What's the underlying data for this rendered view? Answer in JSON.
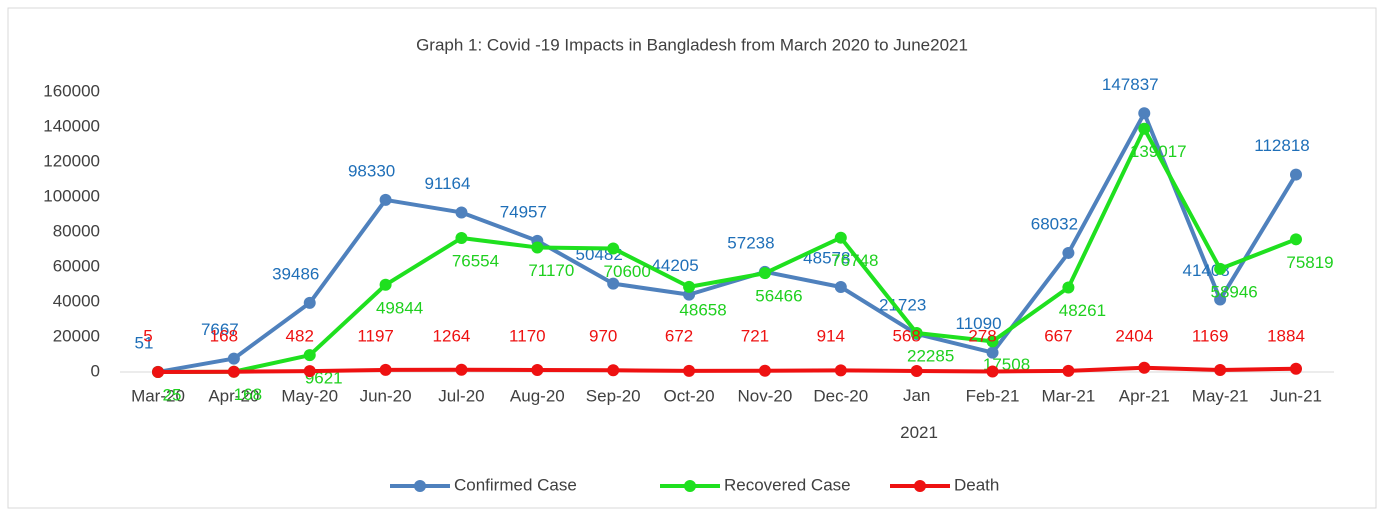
{
  "chart_data": {
    "type": "line",
    "title": "Graph 1: Covid -19 Impacts in Bangladesh from March 2020 to June2021",
    "categories": [
      "Mar-20",
      "Apr-20",
      "May-20",
      "Jun-20",
      "Jul-20",
      "Aug-20",
      "Sep-20",
      "Oct-20",
      "Nov-20",
      "Dec-20",
      "Jan 2021",
      "Feb-21",
      "Mar-21",
      "Apr-21",
      "May-21",
      "Jun-21"
    ],
    "series": [
      {
        "name": "Confirmed Case",
        "color": "#4f81bd",
        "label_color": "#1f6fb8",
        "values": [
          51,
          7667,
          39486,
          98330,
          91164,
          74957,
          50482,
          44205,
          57238,
          48578,
          21723,
          11090,
          68032,
          147837,
          41408,
          112818
        ]
      },
      {
        "name": "Recovered Case",
        "color": "#1fe01f",
        "label_color": "#1fd01f",
        "values": [
          25,
          168,
          9621,
          49844,
          76554,
          71170,
          70600,
          48658,
          56466,
          76748,
          22285,
          17508,
          48261,
          139017,
          58946,
          75819
        ]
      },
      {
        "name": "Death",
        "color": "#ee1111",
        "label_color": "#ee1111",
        "values": [
          5,
          168,
          482,
          1197,
          1264,
          1170,
          970,
          672,
          721,
          914,
          568,
          278,
          667,
          2404,
          1169,
          1884
        ]
      }
    ],
    "ylim": [
      0,
      160000
    ],
    "yticks": [
      0,
      20000,
      40000,
      60000,
      80000,
      100000,
      120000,
      140000,
      160000
    ],
    "grid": false,
    "legend": "bottom"
  }
}
